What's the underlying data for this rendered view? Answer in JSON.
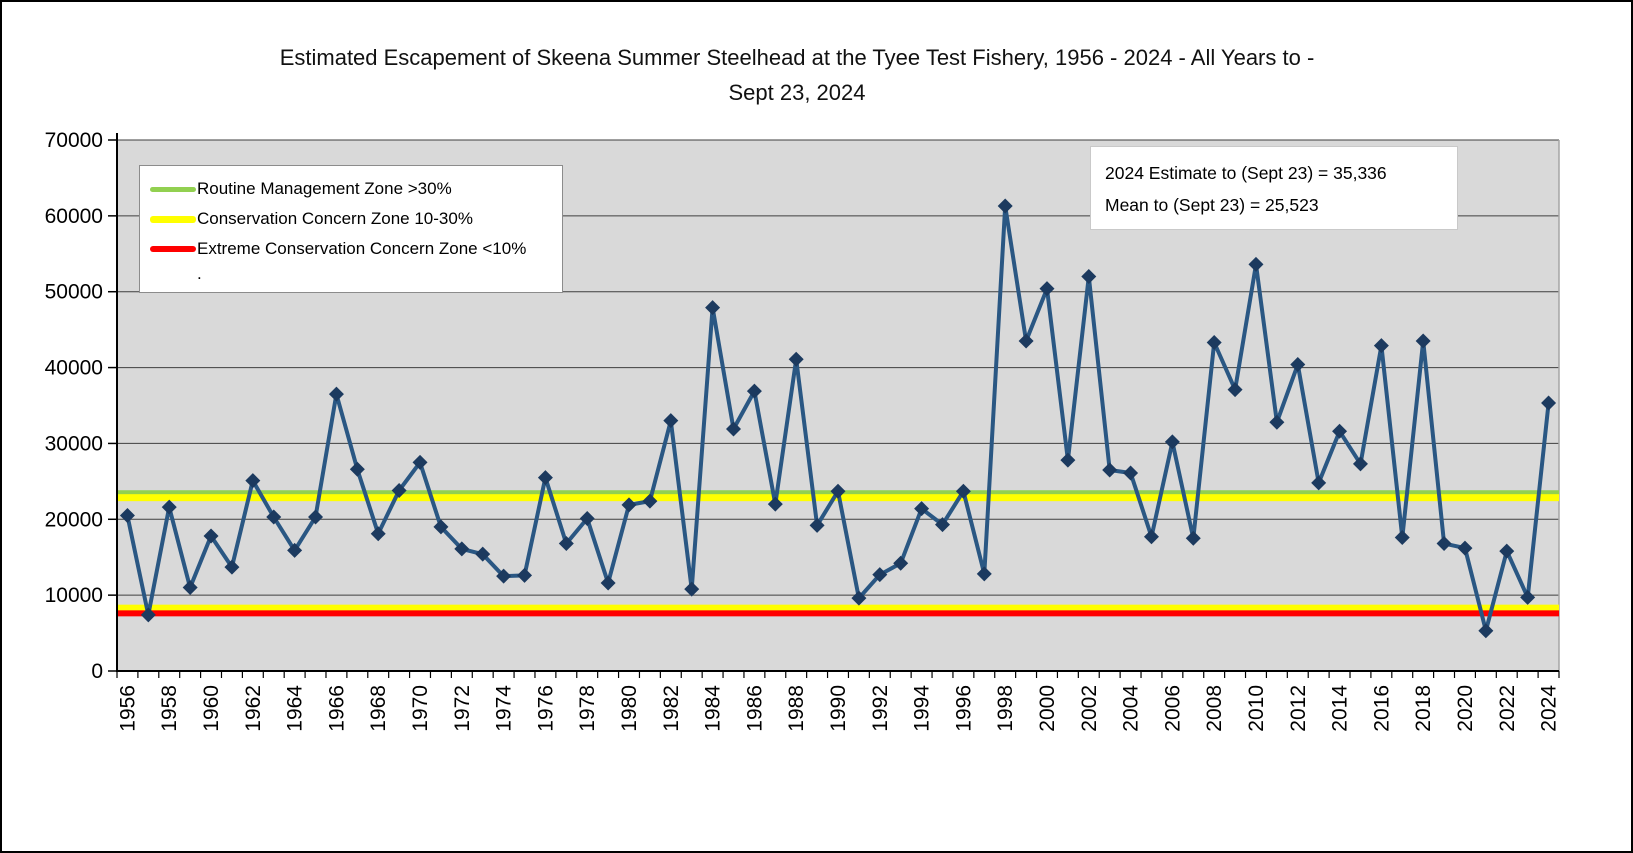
{
  "title": {
    "line1": "Estimated Escapement of Skeena Summer Steelhead at the Tyee Test Fishery, 1956 - 2024 - All Years to -",
    "line2": "Sept 23, 2024"
  },
  "legend": {
    "items": [
      {
        "label": "Routine Management Zone >30%",
        "color": "#92D050"
      },
      {
        "label": "Conservation Concern Zone 10-30%",
        "color": "#FFFF00"
      },
      {
        "label": "Extreme Conservation Concern Zone <10%",
        "color": "#FF0000"
      }
    ],
    "footnote": "."
  },
  "annotation": {
    "line1": "2024 Estimate to (Sept 23) =  35,336",
    "line2": "Mean to (Sept 23) = 25,523"
  },
  "chart_data": {
    "type": "line",
    "title": "Estimated Escapement of Skeena Summer Steelhead at the Tyee Test Fishery, 1956 - 2024 - All Years to Sept 23, 2024",
    "xlabel": "",
    "ylabel": "",
    "ylim": [
      0,
      70000
    ],
    "ytick_interval": 10000,
    "xtick_label_interval": 2,
    "grid": true,
    "legend_position": "top-left-inside",
    "plot_bg": "#D9D9D9",
    "line_color": "#2A5783",
    "marker_color": "#1C3A5F",
    "marker": "diamond",
    "x": [
      1956,
      1957,
      1958,
      1959,
      1960,
      1961,
      1962,
      1963,
      1964,
      1965,
      1966,
      1967,
      1968,
      1969,
      1970,
      1971,
      1972,
      1973,
      1974,
      1975,
      1976,
      1977,
      1978,
      1979,
      1980,
      1981,
      1982,
      1983,
      1984,
      1985,
      1986,
      1987,
      1988,
      1989,
      1990,
      1991,
      1992,
      1993,
      1994,
      1995,
      1996,
      1997,
      1998,
      1999,
      2000,
      2001,
      2002,
      2003,
      2004,
      2005,
      2006,
      2007,
      2008,
      2009,
      2010,
      2011,
      2012,
      2013,
      2014,
      2015,
      2016,
      2017,
      2018,
      2019,
      2020,
      2021,
      2022,
      2023,
      2024
    ],
    "values": [
      20500,
      7400,
      21600,
      11000,
      17800,
      13700,
      25100,
      20300,
      15900,
      20300,
      36500,
      26600,
      18100,
      23800,
      27500,
      19000,
      16100,
      15400,
      12500,
      12600,
      25500,
      16800,
      20100,
      11600,
      21900,
      22400,
      33000,
      10800,
      47900,
      31900,
      36900,
      22000,
      41100,
      19200,
      23700,
      9600,
      12700,
      14200,
      21400,
      19300,
      23700,
      12800,
      61300,
      43500,
      50400,
      27800,
      52000,
      26500,
      26100,
      17700,
      30200,
      17500,
      43300,
      37100,
      53600,
      32800,
      40400,
      24800,
      31600,
      27300,
      42900,
      17600,
      43500,
      16800,
      16200,
      5300,
      15800,
      9700,
      35336
    ],
    "zone_lines": [
      {
        "name": "routine-management-threshold-green",
        "color": "#92D050",
        "value": 23500,
        "thickness": 5
      },
      {
        "name": "conservation-concern-upper-yellow",
        "color": "#FFFF00",
        "value": 22850,
        "thickness": 7
      },
      {
        "name": "conservation-concern-lower-yellow",
        "color": "#FFFF00",
        "value": 8350,
        "thickness": 6
      },
      {
        "name": "extreme-conservation-threshold-red",
        "color": "#FF0000",
        "value": 7600,
        "thickness": 6
      }
    ]
  }
}
